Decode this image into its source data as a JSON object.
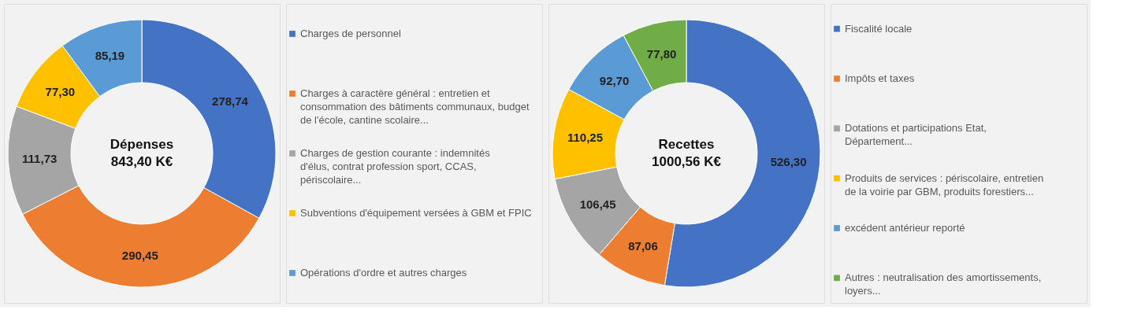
{
  "chart_data": [
    {
      "type": "donut",
      "title": "Dépenses",
      "annotations": [
        "843,40 K€"
      ],
      "legend": "right",
      "categories": [
        "Charges de personnel",
        "Charges à caractère général : entretien et consommation des bâtiments communaux, budget de l'école, cantine scolaire...",
        "Charges de gestion courante : indemnités d'élus, contrat profession sport, CCAS, périscolaire...",
        "Subventions d'équipement versées à GBM et FPIC",
        "Opérations d'ordre et autres charges"
      ],
      "values": [
        278.74,
        290.45,
        111.73,
        77.3,
        85.19
      ],
      "value_labels": [
        "278,74",
        "290,45",
        "111,73",
        "77,30",
        "85,19"
      ],
      "colors": [
        "#4472c4",
        "#ed7d31",
        "#a5a5a5",
        "#ffc000",
        "#5b9bd5"
      ]
    },
    {
      "type": "donut",
      "title": "Recettes",
      "annotations": [
        "1000,56 K€"
      ],
      "legend": "right",
      "categories": [
        "Fiscalité locale",
        "Impôts et taxes",
        "Dotations et participations Etat, Département...",
        "Produits de services : périscolaire, entretien de la voirie par GBM,  produits forestiers...",
        "excédent antérieur reporté",
        "Autres : neutralisation des amortissements, loyers..."
      ],
      "values": [
        526.3,
        87.06,
        106.45,
        110.25,
        92.7,
        77.8
      ],
      "value_labels": [
        "526,30",
        "87,06",
        "106,45",
        "110,25",
        "92,70",
        "77,80"
      ],
      "colors": [
        "#4472c4",
        "#ed7d31",
        "#a5a5a5",
        "#ffc000",
        "#5b9bd5",
        "#70ad47"
      ]
    }
  ]
}
